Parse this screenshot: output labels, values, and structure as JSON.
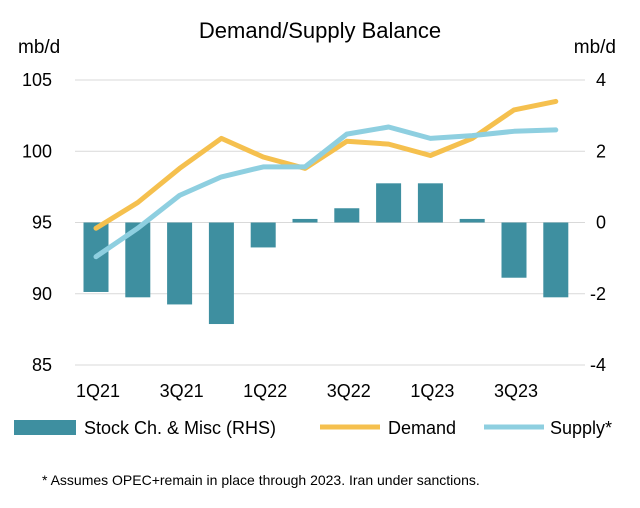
{
  "chart_data": {
    "type": "bar+line",
    "title": "Demand/Supply Balance",
    "left_axis": {
      "unit": "mb/d",
      "range": [
        85,
        105
      ],
      "ticks": [
        85,
        90,
        95,
        100,
        105
      ]
    },
    "right_axis": {
      "unit": "mb/d",
      "range": [
        -4,
        4
      ],
      "ticks": [
        -4,
        -2,
        0,
        2,
        4
      ]
    },
    "categories": [
      "1Q21",
      "2Q21",
      "3Q21",
      "4Q21",
      "1Q22",
      "2Q22",
      "3Q22",
      "4Q22",
      "1Q23",
      "2Q23",
      "3Q23",
      "4Q23"
    ],
    "x_tick_labels": [
      "1Q21",
      "3Q21",
      "1Q22",
      "3Q22",
      "1Q23",
      "3Q23"
    ],
    "x_tick_label_indices": [
      0,
      2,
      4,
      6,
      8,
      10
    ],
    "series": [
      {
        "name": "Stock Ch. & Misc (RHS)",
        "type": "bar",
        "axis": "right",
        "color": "#3e8fa0",
        "values": [
          -1.95,
          -2.1,
          -2.3,
          -2.85,
          -0.7,
          0.1,
          0.4,
          1.1,
          1.1,
          0.1,
          -1.55,
          -2.1
        ]
      },
      {
        "name": "Demand",
        "type": "line",
        "axis": "left",
        "color": "#f5c04e",
        "values": [
          94.6,
          96.4,
          98.8,
          100.9,
          99.6,
          98.8,
          100.7,
          100.5,
          99.7,
          100.9,
          102.9,
          103.5
        ]
      },
      {
        "name": "Supply*",
        "type": "line",
        "axis": "left",
        "color": "#8ecfe0",
        "values": [
          92.6,
          94.6,
          96.9,
          98.2,
          98.9,
          98.9,
          101.2,
          101.7,
          100.9,
          101.1,
          101.4,
          101.5
        ]
      }
    ],
    "legend_position": "bottom",
    "grid": true,
    "footnote": "* Assumes OPEC+remain in place through 2023. Iran under sanctions."
  }
}
